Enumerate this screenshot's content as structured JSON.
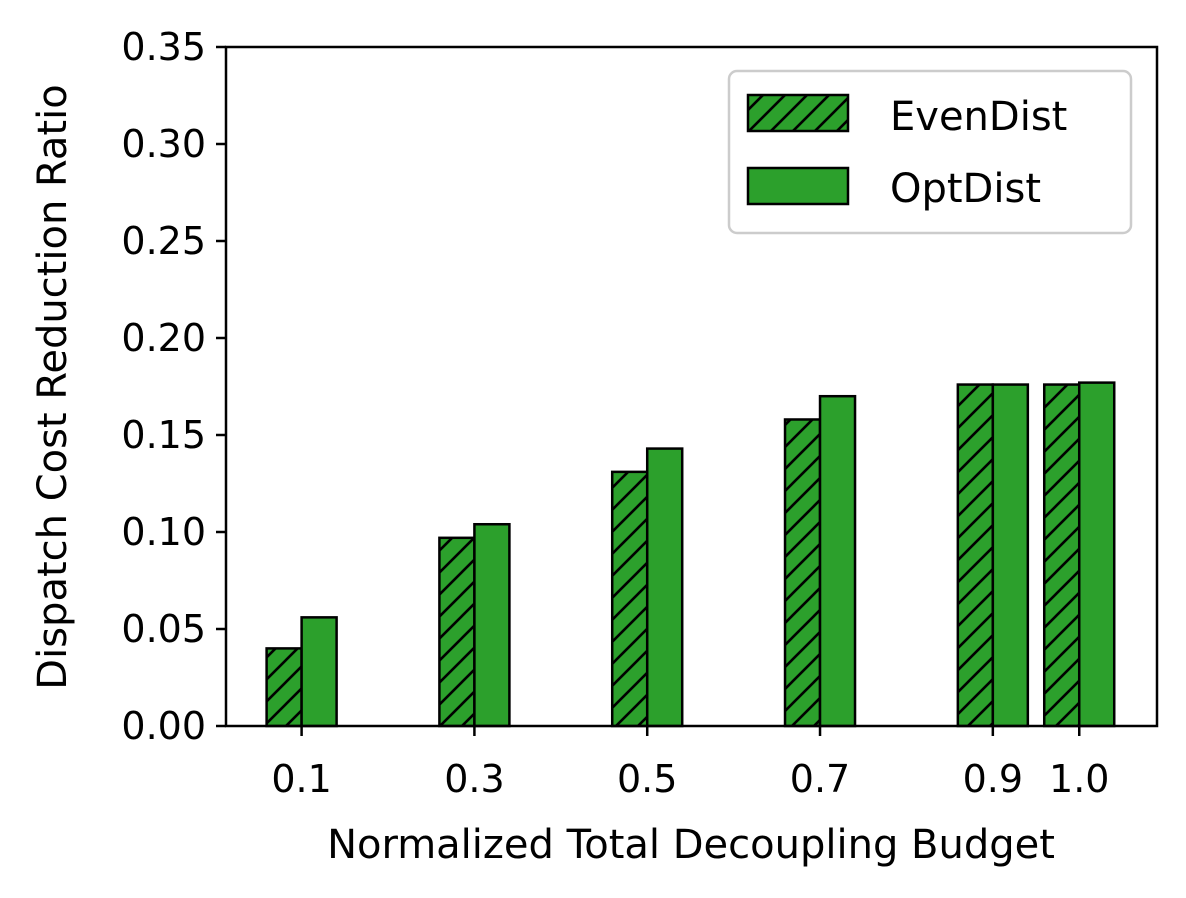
{
  "chart_data": {
    "type": "bar",
    "xlabel": "Normalized Total Decoupling Budget",
    "ylabel": "Dispatch Cost Reduction Ratio",
    "ylim": [
      0,
      0.35
    ],
    "yticks": [
      "0.00",
      "0.05",
      "0.10",
      "0.15",
      "0.20",
      "0.25",
      "0.30",
      "0.35"
    ],
    "x": [
      0.1,
      0.3,
      0.5,
      0.7,
      0.9,
      1.0
    ],
    "x_tick_labels": [
      "0.1",
      "0.3",
      "0.5",
      "0.7",
      "0.9",
      "1.0"
    ],
    "xlim": [
      0.0125,
      1.09
    ],
    "series": [
      {
        "name": "EvenDist",
        "values": [
          0.04,
          0.097,
          0.131,
          0.158,
          0.176,
          0.176
        ],
        "color": "#2ca02c",
        "hatch": "diagonal"
      },
      {
        "name": "OptDist",
        "values": [
          0.056,
          0.104,
          0.143,
          0.17,
          0.176,
          0.177
        ],
        "color": "#2ca02c",
        "hatch": "none"
      }
    ],
    "legend_position": "top-right",
    "grid": false
  }
}
